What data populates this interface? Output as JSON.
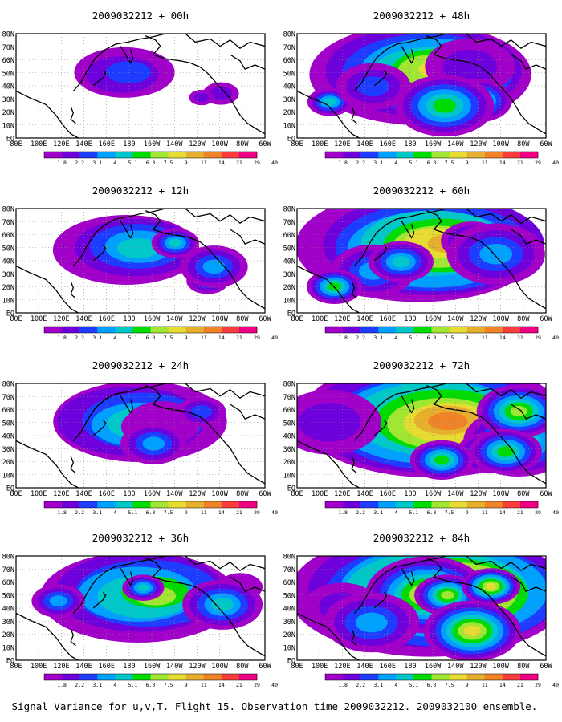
{
  "caption": "Signal Variance for u,v,T. Flight 15. Observation time 2009032212. 2009032100 ensemble.",
  "lat_labels": [
    "80N",
    "70N",
    "60N",
    "50N",
    "40N",
    "30N",
    "20N",
    "10N",
    "EQ"
  ],
  "lon_labels": [
    "80E",
    "100E",
    "120E",
    "140E",
    "160E",
    "180",
    "160W",
    "140W",
    "120W",
    "100W",
    "80W",
    "60W"
  ],
  "colorbar": {
    "labels": [
      "1.8",
      "2.2",
      "3.1",
      "4",
      "5.1",
      "6.3",
      "7.5",
      "9",
      "11",
      "14",
      "21",
      "29",
      "40"
    ],
    "colors": [
      "#a000c8",
      "#6e00dc",
      "#1e3cff",
      "#00a0ff",
      "#00c8c8",
      "#00dc00",
      "#a0e632",
      "#e6dc32",
      "#e6af2d",
      "#f08228",
      "#fa3c3c",
      "#f00082"
    ]
  },
  "panels": [
    {
      "title": "2009032212 + 00h",
      "intensity": 0.1
    },
    {
      "title": "2009032212 + 48h",
      "intensity": 0.68
    },
    {
      "title": "2009032212 + 12h",
      "intensity": 0.32
    },
    {
      "title": "2009032212 + 60h",
      "intensity": 0.8
    },
    {
      "title": "2009032212 + 24h",
      "intensity": 0.45
    },
    {
      "title": "2009032212 + 72h",
      "intensity": 0.88
    },
    {
      "title": "2009032212 + 36h",
      "intensity": 0.56
    },
    {
      "title": "2009032212 + 84h",
      "intensity": 0.96
    }
  ]
}
